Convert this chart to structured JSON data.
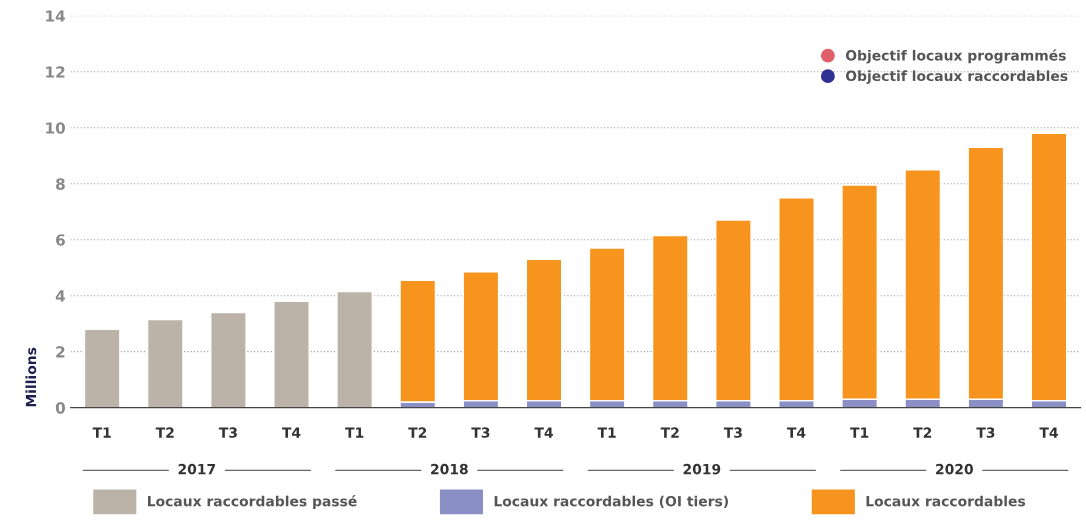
{
  "chart_data": {
    "type": "bar",
    "stacked": true,
    "ylabel": "Millions",
    "categories": [
      "T1",
      "T2",
      "T3",
      "T4",
      "T1",
      "T2",
      "T3",
      "T4",
      "T1",
      "T2",
      "T3",
      "T4",
      "T1",
      "T2",
      "T3",
      "T4"
    ],
    "annotations": [
      "2017",
      "2018",
      "2019",
      "2020"
    ],
    "series": [
      {
        "name": "Locaux raccordables passé",
        "color": "#bcb3a8",
        "values": [
          2.8,
          3.15,
          3.4,
          3.8,
          4.15,
          null,
          null,
          null,
          null,
          null,
          null,
          null,
          null,
          null,
          null,
          null
        ]
      },
      {
        "name": "Locaux raccordables (OI tiers)",
        "color": "#8a8fc6",
        "values": [
          null,
          null,
          null,
          null,
          null,
          0.2,
          0.25,
          0.25,
          0.25,
          0.25,
          0.25,
          0.25,
          0.3,
          0.3,
          0.3,
          0.25
        ]
      },
      {
        "name": "Locaux raccordables",
        "color": "#f7941d",
        "values": [
          null,
          null,
          null,
          null,
          null,
          4.35,
          4.6,
          5.05,
          5.45,
          5.9,
          6.45,
          7.25,
          7.65,
          8.2,
          9.0,
          9.55
        ]
      },
      {
        "name": "Objectif locaux programmés",
        "type": "scatter",
        "color": "#e0606a",
        "values": [
          null,
          null,
          null,
          null,
          null,
          null,
          null,
          null,
          null,
          null,
          null,
          null,
          null,
          null,
          null,
          null
        ]
      },
      {
        "name": "Objectif locaux raccordables",
        "type": "scatter",
        "color": "#2e3192",
        "values": [
          null,
          null,
          null,
          null,
          null,
          null,
          null,
          null,
          null,
          null,
          null,
          null,
          null,
          null,
          null,
          null
        ]
      }
    ],
    "ylim": [
      0,
      14
    ],
    "yticks": [
      0,
      2,
      4,
      6,
      8,
      10,
      12,
      14
    ],
    "grid": "y",
    "legend": "bottom"
  }
}
